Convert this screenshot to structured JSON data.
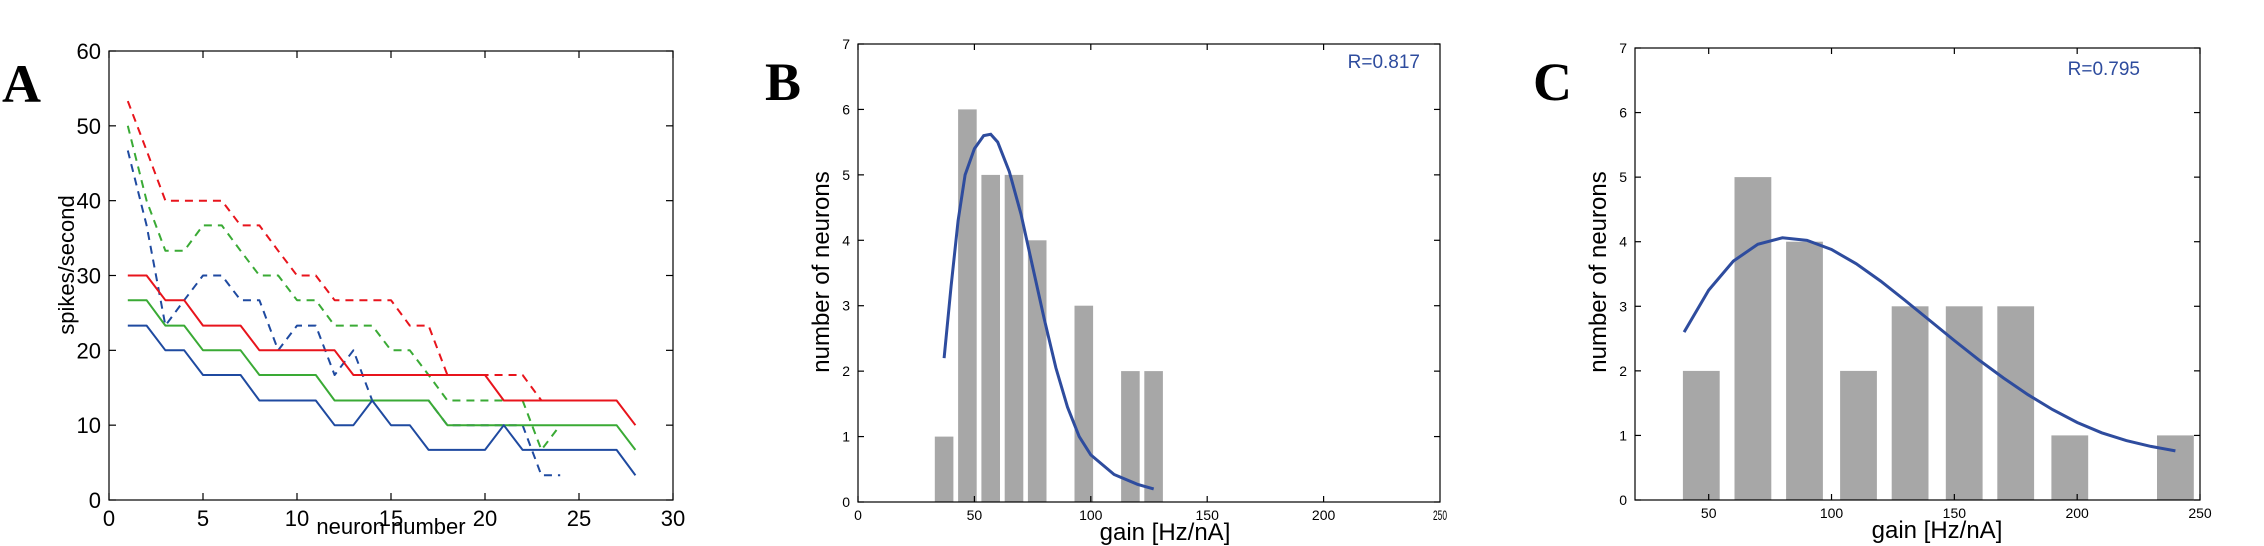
{
  "colors": {
    "red": "#e8141c",
    "green": "#3aaa35",
    "blue": "#1f4aa0",
    "fit": "#2e4c9e",
    "bar": "#a7a7a7",
    "annot": "#2e4c9e"
  },
  "chart_data": [
    {
      "type": "line",
      "panel_label": "A",
      "title": "",
      "xlabel": "neuron number",
      "ylabel": "spikes/second",
      "xlim": [
        0,
        30
      ],
      "ylim": [
        0,
        60
      ],
      "x_ticks": [
        0,
        5,
        10,
        15,
        20,
        25,
        30
      ],
      "y_ticks": [
        0,
        10,
        20,
        30,
        40,
        50,
        60
      ],
      "grid": false,
      "series": [
        {
          "color": "red",
          "dashed": true,
          "points": [
            [
              1,
              53.3
            ],
            [
              2,
              46.7
            ],
            [
              3,
              40
            ],
            [
              4,
              40
            ],
            [
              5,
              40
            ],
            [
              6,
              40
            ],
            [
              7,
              36.7
            ],
            [
              8,
              36.7
            ],
            [
              9,
              33.3
            ],
            [
              10,
              30
            ],
            [
              11,
              30
            ],
            [
              12,
              26.7
            ],
            [
              13,
              26.7
            ],
            [
              14,
              26.7
            ],
            [
              15,
              26.7
            ],
            [
              16,
              23.3
            ],
            [
              17,
              23.3
            ],
            [
              18,
              16.7
            ],
            [
              19,
              16.7
            ],
            [
              20,
              16.7
            ],
            [
              21,
              16.7
            ],
            [
              22,
              16.7
            ],
            [
              23,
              13.3
            ]
          ]
        },
        {
          "color": "green",
          "dashed": true,
          "points": [
            [
              1,
              50
            ],
            [
              2,
              40
            ],
            [
              3,
              33.3
            ],
            [
              4,
              33.3
            ],
            [
              5,
              36.7
            ],
            [
              6,
              36.7
            ],
            [
              7,
              33.3
            ],
            [
              8,
              30
            ],
            [
              9,
              30
            ],
            [
              10,
              26.7
            ],
            [
              11,
              26.7
            ],
            [
              12,
              23.3
            ],
            [
              13,
              23.3
            ],
            [
              14,
              23.3
            ],
            [
              15,
              20
            ],
            [
              16,
              20
            ],
            [
              17,
              16.7
            ],
            [
              18,
              13.3
            ],
            [
              19,
              13.3
            ],
            [
              20,
              13.3
            ],
            [
              21,
              13.3
            ],
            [
              22,
              13.3
            ],
            [
              23,
              6.7
            ],
            [
              24,
              10
            ]
          ]
        },
        {
          "color": "blue",
          "dashed": true,
          "points": [
            [
              1,
              46.7
            ],
            [
              2,
              36.7
            ],
            [
              3,
              23.3
            ],
            [
              4,
              26.7
            ],
            [
              5,
              30
            ],
            [
              6,
              30
            ],
            [
              7,
              26.7
            ],
            [
              8,
              26.7
            ],
            [
              9,
              20
            ],
            [
              10,
              23.3
            ],
            [
              11,
              23.3
            ],
            [
              12,
              16.7
            ],
            [
              13,
              20
            ],
            [
              14,
              13.3
            ],
            [
              15,
              13.3
            ],
            [
              16,
              13.3
            ],
            [
              17,
              13.3
            ],
            [
              18,
              10
            ],
            [
              19,
              10
            ],
            [
              20,
              10
            ],
            [
              21,
              10
            ],
            [
              22,
              10
            ],
            [
              23,
              3.3
            ],
            [
              24,
              3.3
            ]
          ]
        },
        {
          "color": "red",
          "dashed": false,
          "points": [
            [
              1,
              30
            ],
            [
              2,
              30
            ],
            [
              3,
              26.7
            ],
            [
              4,
              26.7
            ],
            [
              5,
              23.3
            ],
            [
              6,
              23.3
            ],
            [
              7,
              23.3
            ],
            [
              8,
              20
            ],
            [
              9,
              20
            ],
            [
              10,
              20
            ],
            [
              11,
              20
            ],
            [
              12,
              20
            ],
            [
              13,
              16.7
            ],
            [
              14,
              16.7
            ],
            [
              15,
              16.7
            ],
            [
              16,
              16.7
            ],
            [
              17,
              16.7
            ],
            [
              18,
              16.7
            ],
            [
              19,
              16.7
            ],
            [
              20,
              16.7
            ],
            [
              21,
              13.3
            ],
            [
              22,
              13.3
            ],
            [
              23,
              13.3
            ],
            [
              24,
              13.3
            ],
            [
              25,
              13.3
            ],
            [
              26,
              13.3
            ],
            [
              27,
              13.3
            ],
            [
              28,
              10
            ]
          ]
        },
        {
          "color": "green",
          "dashed": false,
          "points": [
            [
              1,
              26.7
            ],
            [
              2,
              26.7
            ],
            [
              3,
              23.3
            ],
            [
              4,
              23.3
            ],
            [
              5,
              20
            ],
            [
              6,
              20
            ],
            [
              7,
              20
            ],
            [
              8,
              16.7
            ],
            [
              9,
              16.7
            ],
            [
              10,
              16.7
            ],
            [
              11,
              16.7
            ],
            [
              12,
              13.3
            ],
            [
              13,
              13.3
            ],
            [
              14,
              13.3
            ],
            [
              15,
              13.3
            ],
            [
              16,
              13.3
            ],
            [
              17,
              13.3
            ],
            [
              18,
              10
            ],
            [
              19,
              10
            ],
            [
              20,
              10
            ],
            [
              21,
              10
            ],
            [
              22,
              10
            ],
            [
              23,
              10
            ],
            [
              24,
              10
            ],
            [
              25,
              10
            ],
            [
              26,
              10
            ],
            [
              27,
              10
            ],
            [
              28,
              6.7
            ]
          ]
        },
        {
          "color": "blue",
          "dashed": false,
          "points": [
            [
              1,
              23.3
            ],
            [
              2,
              23.3
            ],
            [
              3,
              20
            ],
            [
              4,
              20
            ],
            [
              5,
              16.7
            ],
            [
              6,
              16.7
            ],
            [
              7,
              16.7
            ],
            [
              8,
              13.3
            ],
            [
              9,
              13.3
            ],
            [
              10,
              13.3
            ],
            [
              11,
              13.3
            ],
            [
              12,
              10
            ],
            [
              13,
              10
            ],
            [
              14,
              13.3
            ],
            [
              15,
              10
            ],
            [
              16,
              10
            ],
            [
              17,
              6.7
            ],
            [
              18,
              6.7
            ],
            [
              19,
              6.7
            ],
            [
              20,
              6.7
            ],
            [
              21,
              10
            ],
            [
              22,
              6.7
            ],
            [
              23,
              6.7
            ],
            [
              24,
              6.7
            ],
            [
              25,
              6.7
            ],
            [
              26,
              6.7
            ],
            [
              27,
              6.7
            ],
            [
              28,
              3.3
            ]
          ]
        }
      ]
    },
    {
      "type": "bar",
      "panel_label": "B",
      "title": "",
      "xlabel": "gain [Hz/nA]",
      "ylabel": "number of neurons",
      "xlim": [
        0,
        250
      ],
      "ylim": [
        0,
        7
      ],
      "x_ticks": [
        0,
        50,
        100,
        150,
        200
      ],
      "x_tick_partial": "250",
      "y_ticks": [
        0,
        1,
        2,
        3,
        4,
        5,
        6,
        7
      ],
      "annotation": "R=0.817",
      "bar_width": 8,
      "bars": [
        {
          "x": 37,
          "value": 1
        },
        {
          "x": 47,
          "value": 6
        },
        {
          "x": 57,
          "value": 5
        },
        {
          "x": 67,
          "value": 5
        },
        {
          "x": 77,
          "value": 4
        },
        {
          "x": 97,
          "value": 3
        },
        {
          "x": 117,
          "value": 2
        },
        {
          "x": 127,
          "value": 2
        }
      ],
      "fit": [
        [
          37,
          2.2
        ],
        [
          40,
          3.3
        ],
        [
          43,
          4.3
        ],
        [
          46,
          5
        ],
        [
          50,
          5.4
        ],
        [
          54,
          5.6
        ],
        [
          57,
          5.62
        ],
        [
          60,
          5.5
        ],
        [
          65,
          5.05
        ],
        [
          70,
          4.4
        ],
        [
          75,
          3.6
        ],
        [
          80,
          2.8
        ],
        [
          85,
          2.05
        ],
        [
          90,
          1.45
        ],
        [
          95,
          1
        ],
        [
          100,
          0.72
        ],
        [
          110,
          0.42
        ],
        [
          120,
          0.27
        ],
        [
          127,
          0.2
        ]
      ]
    },
    {
      "type": "bar",
      "panel_label": "C",
      "title": "",
      "xlabel": "gain [Hz/nA]",
      "ylabel": "number of neurons",
      "xlim": [
        20,
        250
      ],
      "ylim": [
        0,
        7
      ],
      "x_ticks": [
        50,
        100,
        150,
        200,
        250
      ],
      "y_ticks": [
        0,
        1,
        2,
        3,
        4,
        5,
        6,
        7
      ],
      "annotation": "R=0.795",
      "bar_width": 15,
      "bars": [
        {
          "x": 47,
          "value": 2
        },
        {
          "x": 68,
          "value": 5
        },
        {
          "x": 89,
          "value": 4
        },
        {
          "x": 111,
          "value": 2
        },
        {
          "x": 132,
          "value": 3
        },
        {
          "x": 154,
          "value": 3
        },
        {
          "x": 175,
          "value": 3
        },
        {
          "x": 197,
          "value": 1
        },
        {
          "x": 240,
          "value": 1
        }
      ],
      "fit": [
        [
          40,
          2.6
        ],
        [
          50,
          3.25
        ],
        [
          60,
          3.7
        ],
        [
          70,
          3.96
        ],
        [
          80,
          4.06
        ],
        [
          90,
          4.02
        ],
        [
          100,
          3.88
        ],
        [
          110,
          3.66
        ],
        [
          120,
          3.39
        ],
        [
          130,
          3.09
        ],
        [
          140,
          2.78
        ],
        [
          150,
          2.47
        ],
        [
          160,
          2.17
        ],
        [
          170,
          1.89
        ],
        [
          180,
          1.63
        ],
        [
          190,
          1.4
        ],
        [
          200,
          1.2
        ],
        [
          210,
          1.04
        ],
        [
          220,
          0.92
        ],
        [
          230,
          0.83
        ],
        [
          240,
          0.76
        ]
      ]
    }
  ]
}
